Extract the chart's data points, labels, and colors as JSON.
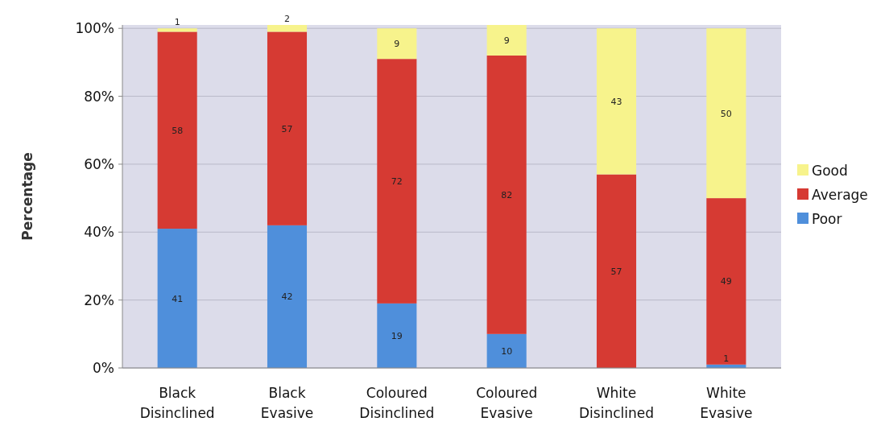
{
  "chart_data": {
    "type": "bar",
    "stacked": true,
    "ylabel": "Percentage",
    "categories": [
      "Black Disinclined",
      "Black Evasive",
      "Coloured Disinclined",
      "Coloured Evasive",
      "White Disinclined",
      "White Evasive"
    ],
    "series": [
      {
        "name": "Poor",
        "color": "#4f8fdb",
        "values": [
          41,
          42,
          19,
          10,
          0,
          1
        ],
        "value_labels": [
          "41",
          "42",
          "19",
          "10",
          null,
          "1"
        ]
      },
      {
        "name": "Average",
        "color": "#d63a33",
        "values": [
          58,
          57,
          72,
          82,
          57,
          49
        ],
        "value_labels": [
          "58",
          "57",
          "72",
          "82",
          "57",
          "49"
        ]
      },
      {
        "name": "Good",
        "color": "#f7f38c",
        "values": [
          1,
          2,
          9,
          9,
          43,
          50
        ],
        "value_labels": [
          "1",
          "2",
          "9",
          "9",
          "43",
          "50"
        ]
      }
    ],
    "ylim": [
      0,
      101
    ],
    "yticks": [
      {
        "value": 0,
        "label": "0%"
      },
      {
        "value": 20,
        "label": "20%"
      },
      {
        "value": 40,
        "label": "40%"
      },
      {
        "value": 60,
        "label": "60%"
      },
      {
        "value": 80,
        "label": "80%"
      },
      {
        "value": 100,
        "label": "100%"
      }
    ],
    "grid": "y",
    "legend": "right"
  }
}
